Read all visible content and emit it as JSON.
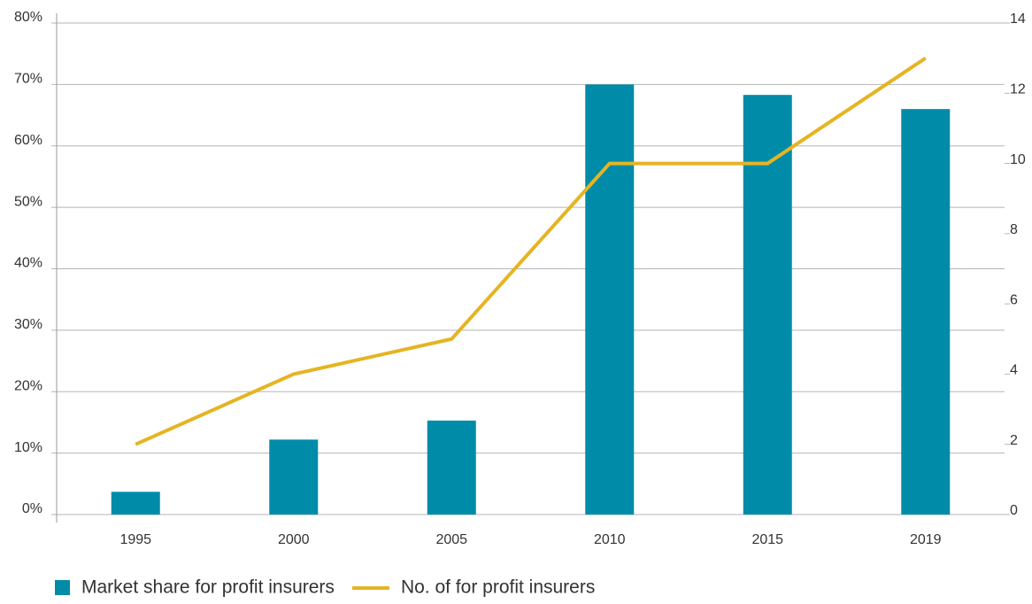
{
  "chart_data": {
    "type": "bar_line",
    "categories": [
      "1995",
      "2000",
      "2005",
      "2010",
      "2015",
      "2019"
    ],
    "series": [
      {
        "name": "Market share for profit insurers",
        "type": "bar",
        "color": "#008ca8",
        "values": [
          3.7,
          12.2,
          15.3,
          70,
          68.3,
          66
        ]
      },
      {
        "name": "No. of for profit insurers",
        "type": "line",
        "axis": "y2",
        "color": "#e6b422",
        "values": [
          2,
          4,
          5,
          10,
          10,
          13
        ]
      }
    ],
    "ylim": [
      0,
      80
    ],
    "yticks": [
      {
        "value": 0,
        "label": "0%"
      },
      {
        "value": 10,
        "label": "10%"
      },
      {
        "value": 20,
        "label": "20%"
      },
      {
        "value": 30,
        "label": "30%"
      },
      {
        "value": 40,
        "label": "40%"
      },
      {
        "value": 50,
        "label": "50%"
      },
      {
        "value": 60,
        "label": "60%"
      },
      {
        "value": 70,
        "label": "70%"
      },
      {
        "value": 80,
        "label": "80%"
      }
    ],
    "y2lim": [
      0,
      14
    ],
    "y2ticks": [
      0,
      2,
      4,
      6,
      8,
      10,
      12,
      14
    ],
    "grid": true,
    "legend": "bottom-left"
  }
}
